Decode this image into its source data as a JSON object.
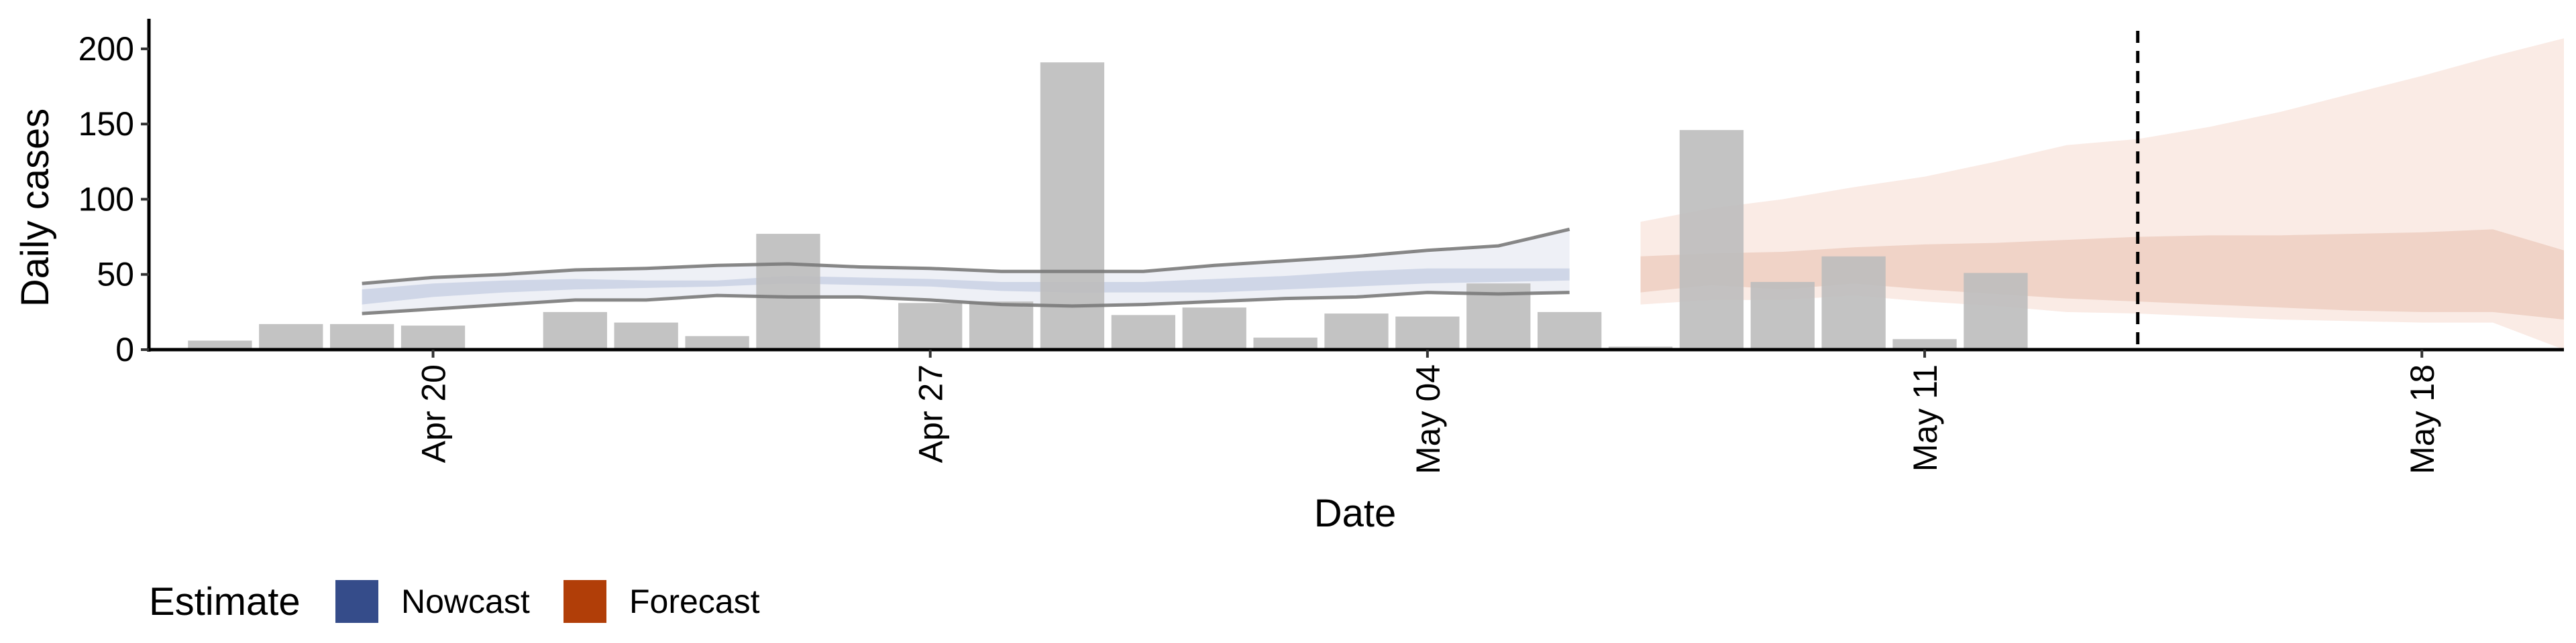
{
  "chart_data": {
    "type": "bar",
    "xlabel": "Date",
    "ylabel": "Daily cases",
    "ylim": [
      0,
      220
    ],
    "xlim": [
      "2020-04-16",
      "2020-05-20"
    ],
    "grid": false,
    "y_ticks": [
      0,
      50,
      100,
      150,
      200
    ],
    "x_ticks": [
      {
        "date": "2020-04-20",
        "label": "Apr 20"
      },
      {
        "date": "2020-04-27",
        "label": "Apr 27"
      },
      {
        "date": "2020-05-04",
        "label": "May 04"
      },
      {
        "date": "2020-05-11",
        "label": "May 11"
      },
      {
        "date": "2020-05-18",
        "label": "May 18"
      }
    ],
    "reported_cases": {
      "dates": [
        "2020-04-17",
        "2020-04-18",
        "2020-04-19",
        "2020-04-20",
        "2020-04-21",
        "2020-04-22",
        "2020-04-23",
        "2020-04-24",
        "2020-04-25",
        "2020-04-26",
        "2020-04-27",
        "2020-04-28",
        "2020-04-29",
        "2020-04-30",
        "2020-05-01",
        "2020-05-02",
        "2020-05-03",
        "2020-05-04",
        "2020-05-05",
        "2020-05-06",
        "2020-05-07",
        "2020-05-08",
        "2020-05-09",
        "2020-05-10",
        "2020-05-11",
        "2020-05-12",
        "2020-05-13",
        "2020-05-14"
      ],
      "values": [
        6,
        17,
        17,
        16,
        0,
        25,
        18,
        9,
        77,
        0,
        31,
        32,
        191,
        23,
        28,
        8,
        24,
        22,
        44,
        25,
        2,
        146,
        45,
        62,
        7,
        51,
        0,
        0
      ]
    },
    "estimate_bands": {
      "dates": [
        "2020-04-19",
        "2020-04-20",
        "2020-04-21",
        "2020-04-22",
        "2020-04-23",
        "2020-04-24",
        "2020-04-25",
        "2020-04-26",
        "2020-04-27",
        "2020-04-28",
        "2020-04-29",
        "2020-04-30",
        "2020-05-01",
        "2020-05-02",
        "2020-05-03",
        "2020-05-04",
        "2020-05-05",
        "2020-05-06",
        "2020-05-07",
        "2020-05-08",
        "2020-05-09",
        "2020-05-10",
        "2020-05-11",
        "2020-05-12",
        "2020-05-13",
        "2020-05-14",
        "2020-05-15",
        "2020-05-16",
        "2020-05-17",
        "2020-05-18",
        "2020-05-19",
        "2020-05-20"
      ],
      "outer_low": [
        24,
        27,
        30,
        33,
        33,
        36,
        35,
        35,
        33,
        30,
        29,
        30,
        32,
        34,
        35,
        38,
        37,
        38,
        30,
        33,
        33,
        36,
        32,
        29,
        25,
        24,
        22,
        20,
        19,
        18,
        18,
        0
      ],
      "inner_low": [
        30,
        35,
        38,
        40,
        41,
        42,
        44,
        43,
        42,
        39,
        38,
        38,
        38,
        40,
        42,
        44,
        45,
        46,
        38,
        43,
        40,
        44,
        40,
        37,
        34,
        32,
        30,
        28,
        26,
        25,
        25,
        20
      ],
      "inner_high": [
        40,
        44,
        46,
        47,
        46,
        46,
        49,
        48,
        47,
        45,
        45,
        45,
        47,
        49,
        52,
        54,
        54,
        54,
        62,
        64,
        65,
        68,
        70,
        71,
        73,
        75,
        76,
        76,
        77,
        78,
        80,
        66
      ],
      "outer_high": [
        44,
        48,
        50,
        53,
        54,
        56,
        57,
        55,
        54,
        52,
        52,
        52,
        56,
        59,
        62,
        66,
        69,
        80,
        85,
        94,
        100,
        108,
        115,
        125,
        136,
        140,
        148,
        158,
        170,
        182,
        195,
        207
      ],
      "nowcast_end_index": 17
    },
    "forecast_start": "2020-05-14",
    "legend": {
      "title": "Estimate",
      "position": "bottom-left",
      "entries": [
        {
          "label": "Nowcast",
          "color": "#354c8a"
        },
        {
          "label": "Forecast",
          "color": "#b13e08"
        }
      ]
    },
    "colors": {
      "bars": "#bdbdbd",
      "nowcast_outer": "#eef0f6",
      "nowcast_inner": "#cfd6e7",
      "forecast_outer": "#faebe5",
      "forecast_inner": "#f0d3c7",
      "bound_lines": "#7a7a7a"
    }
  }
}
